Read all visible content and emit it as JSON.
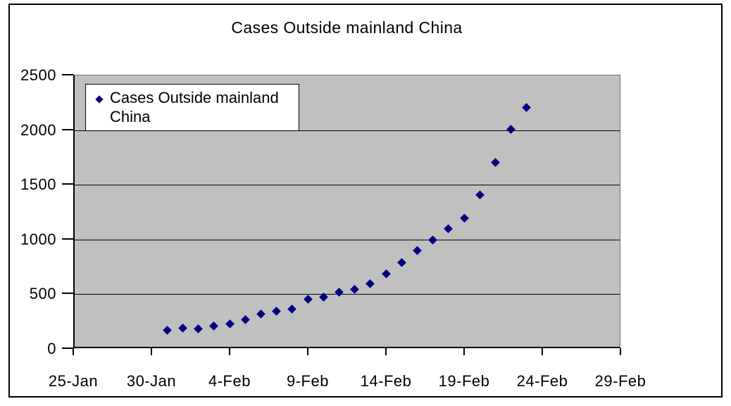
{
  "chart_data": {
    "type": "scatter",
    "title": "Cases Outside mainland China",
    "xlabel": "",
    "ylabel": "",
    "ylim": [
      0,
      2500
    ],
    "y_tick_step": 500,
    "y_tick_labels": [
      "0",
      "500",
      "1000",
      "1500",
      "2000",
      "2500"
    ],
    "x_tick_labels": [
      "25-Jan",
      "30-Jan",
      "4-Feb",
      "9-Feb",
      "14-Feb",
      "19-Feb",
      "24-Feb",
      "29-Feb"
    ],
    "x_days_per_tick": 5,
    "grid": true,
    "legend_position": "top-left-inside",
    "legend_lines": [
      "Cases Outside mainland",
      "China"
    ],
    "colors": {
      "marker": "#000080",
      "plot_background": "#c0c0c0",
      "gridline": "#000000",
      "chart_background": "#ffffff",
      "border": "#000000"
    },
    "series": [
      {
        "name": "Cases Outside mainland China",
        "marker": "diamond",
        "color": "#000080",
        "points": [
          {
            "date": "31-Jan",
            "day_offset": 6,
            "value": 165
          },
          {
            "date": "1-Feb",
            "day_offset": 7,
            "value": 185
          },
          {
            "date": "2-Feb",
            "day_offset": 8,
            "value": 175
          },
          {
            "date": "3-Feb",
            "day_offset": 9,
            "value": 205
          },
          {
            "date": "4-Feb",
            "day_offset": 10,
            "value": 220
          },
          {
            "date": "5-Feb",
            "day_offset": 11,
            "value": 260
          },
          {
            "date": "6-Feb",
            "day_offset": 12,
            "value": 310
          },
          {
            "date": "7-Feb",
            "day_offset": 13,
            "value": 340
          },
          {
            "date": "8-Feb",
            "day_offset": 14,
            "value": 355
          },
          {
            "date": "9-Feb",
            "day_offset": 15,
            "value": 450
          },
          {
            "date": "10-Feb",
            "day_offset": 16,
            "value": 465
          },
          {
            "date": "11-Feb",
            "day_offset": 17,
            "value": 510
          },
          {
            "date": "12-Feb",
            "day_offset": 18,
            "value": 535
          },
          {
            "date": "13-Feb",
            "day_offset": 19,
            "value": 590
          },
          {
            "date": "14-Feb",
            "day_offset": 20,
            "value": 680
          },
          {
            "date": "15-Feb",
            "day_offset": 21,
            "value": 780
          },
          {
            "date": "16-Feb",
            "day_offset": 22,
            "value": 890
          },
          {
            "date": "17-Feb",
            "day_offset": 23,
            "value": 990
          },
          {
            "date": "18-Feb",
            "day_offset": 24,
            "value": 1095
          },
          {
            "date": "19-Feb",
            "day_offset": 25,
            "value": 1190
          },
          {
            "date": "20-Feb",
            "day_offset": 26,
            "value": 1400
          },
          {
            "date": "21-Feb",
            "day_offset": 27,
            "value": 1700
          },
          {
            "date": "22-Feb",
            "day_offset": 28,
            "value": 2000
          },
          {
            "date": "23-Feb",
            "day_offset": 29,
            "value": 2200
          }
        ]
      }
    ]
  }
}
